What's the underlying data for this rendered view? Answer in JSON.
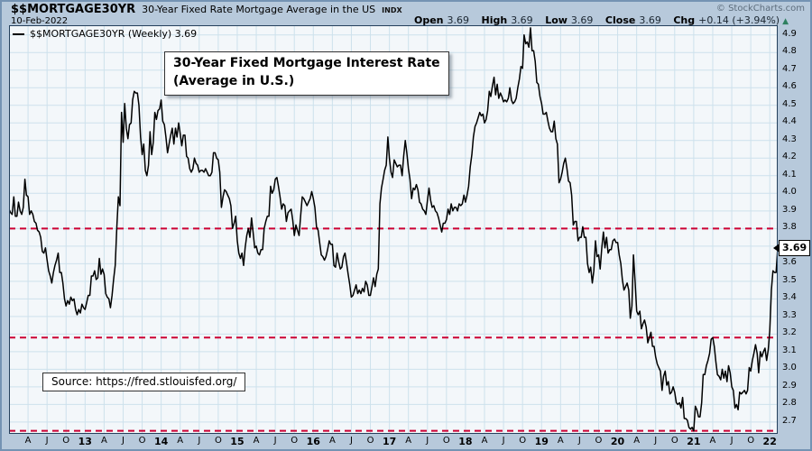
{
  "header": {
    "symbol": "$$MORTGAGE30YR",
    "title": "30-Year Fixed Rate Mortgage Average in the US",
    "exchange": "INDX",
    "date": "10-Feb-2022",
    "copyright": "© StockCharts.com",
    "quote": {
      "open_label": "Open",
      "open": "3.69",
      "high_label": "High",
      "high": "3.69",
      "low_label": "Low",
      "low": "3.69",
      "close_label": "Close",
      "close": "3.69",
      "chg_label": "Chg",
      "chg": "+0.14 (+3.94%)",
      "direction_icon": "▲"
    }
  },
  "legend": {
    "series_label": "$$MORTGAGE30YR (Weekly) 3.69"
  },
  "annotation": {
    "line1": "30-Year Fixed Mortgage Interest Rate",
    "line2": "(Average in U.S.)"
  },
  "source_box": {
    "text": "Source: https://fred.stlouisfed.org/"
  },
  "price_label": {
    "value": "3.69"
  },
  "colors": {
    "page_bg": "#b7c9db",
    "plot_bg": "#f3f7fa",
    "grid": "#cde1ec",
    "series": "#000000",
    "dashed_line": "#cc0033",
    "frame": "#24405c",
    "copyright_text": "#5d6d7c",
    "change_arrow": "#2e8060"
  },
  "chart_data": {
    "type": "line",
    "title": "30-Year Fixed Mortgage Interest Rate (Average in U.S.)",
    "timeframe": "Weekly, Jan 2012 - 10 Feb 2022",
    "points_per_month": 4,
    "ylim": [
      2.633,
      4.955
    ],
    "last_value": 3.69,
    "y_ticks": [
      "4.9",
      "4.8",
      "4.7",
      "4.6",
      "4.5",
      "4.4",
      "4.3",
      "4.2",
      "4.1",
      "4.0",
      "3.9",
      "3.8",
      "3.7",
      "3.6",
      "3.5",
      "3.4",
      "3.3",
      "3.2",
      "3.1",
      "3.0",
      "2.9",
      "2.8",
      "2.7"
    ],
    "x_ticks": [
      {
        "label": "A",
        "month": 3
      },
      {
        "label": "J",
        "month": 6
      },
      {
        "label": "O",
        "month": 9
      },
      {
        "label": "13",
        "month": 12,
        "bold": true
      },
      {
        "label": "A",
        "month": 15
      },
      {
        "label": "J",
        "month": 18
      },
      {
        "label": "O",
        "month": 21
      },
      {
        "label": "14",
        "month": 24,
        "bold": true
      },
      {
        "label": "A",
        "month": 27
      },
      {
        "label": "J",
        "month": 30
      },
      {
        "label": "O",
        "month": 33
      },
      {
        "label": "15",
        "month": 36,
        "bold": true
      },
      {
        "label": "A",
        "month": 39
      },
      {
        "label": "J",
        "month": 42
      },
      {
        "label": "O",
        "month": 45
      },
      {
        "label": "16",
        "month": 48,
        "bold": true
      },
      {
        "label": "A",
        "month": 51
      },
      {
        "label": "J",
        "month": 54
      },
      {
        "label": "O",
        "month": 57
      },
      {
        "label": "17",
        "month": 60,
        "bold": true
      },
      {
        "label": "A",
        "month": 63
      },
      {
        "label": "J",
        "month": 66
      },
      {
        "label": "O",
        "month": 69
      },
      {
        "label": "18",
        "month": 72,
        "bold": true
      },
      {
        "label": "A",
        "month": 75
      },
      {
        "label": "J",
        "month": 78
      },
      {
        "label": "O",
        "month": 81
      },
      {
        "label": "19",
        "month": 84,
        "bold": true
      },
      {
        "label": "A",
        "month": 87
      },
      {
        "label": "J",
        "month": 90
      },
      {
        "label": "O",
        "month": 93
      },
      {
        "label": "20",
        "month": 96,
        "bold": true
      },
      {
        "label": "A",
        "month": 99
      },
      {
        "label": "J",
        "month": 102
      },
      {
        "label": "O",
        "month": 105
      },
      {
        "label": "21",
        "month": 108,
        "bold": true
      },
      {
        "label": "A",
        "month": 111
      },
      {
        "label": "J",
        "month": 114
      },
      {
        "label": "O",
        "month": 117
      },
      {
        "label": "22",
        "month": 120,
        "bold": true
      }
    ],
    "hlines": {
      "values": [
        3.8,
        3.18,
        2.65
      ],
      "color": "#cc0033",
      "style": "dashed"
    },
    "grid": {
      "vline_every_months": 3,
      "hline_step": 0.1
    },
    "series": [
      {
        "name": "$$MORTGAGE30YR (Weekly)",
        "color": "#000000",
        "values": [
          3.91,
          3.89,
          3.88,
          3.98,
          3.87,
          3.87,
          3.95,
          3.9,
          3.88,
          3.92,
          4.08,
          3.99,
          3.98,
          3.88,
          3.9,
          3.88,
          3.84,
          3.83,
          3.79,
          3.78,
          3.75,
          3.67,
          3.66,
          3.69,
          3.62,
          3.56,
          3.53,
          3.49,
          3.55,
          3.59,
          3.62,
          3.66,
          3.55,
          3.55,
          3.49,
          3.4,
          3.36,
          3.39,
          3.37,
          3.41,
          3.39,
          3.4,
          3.34,
          3.31,
          3.34,
          3.32,
          3.37,
          3.35,
          3.34,
          3.38,
          3.42,
          3.42,
          3.53,
          3.53,
          3.56,
          3.51,
          3.52,
          3.63,
          3.54,
          3.57,
          3.54,
          3.43,
          3.41,
          3.4,
          3.35,
          3.42,
          3.51,
          3.59,
          3.81,
          3.98,
          3.93,
          4.46,
          4.29,
          4.51,
          4.37,
          4.31,
          4.39,
          4.4,
          4.53,
          4.58,
          4.57,
          4.57,
          4.5,
          4.32,
          4.22,
          4.28,
          4.13,
          4.1,
          4.16,
          4.35,
          4.22,
          4.29,
          4.46,
          4.42,
          4.47,
          4.48,
          4.53,
          4.41,
          4.39,
          4.32,
          4.23,
          4.28,
          4.33,
          4.37,
          4.28,
          4.37,
          4.32,
          4.4,
          4.34,
          4.27,
          4.33,
          4.33,
          4.21,
          4.2,
          4.14,
          4.12,
          4.14,
          4.2,
          4.17,
          4.16,
          4.12,
          4.13,
          4.13,
          4.12,
          4.14,
          4.12,
          4.1,
          4.1,
          4.12,
          4.23,
          4.23,
          4.2,
          4.19,
          4.12,
          3.92,
          3.98,
          4.02,
          4.01,
          3.99,
          3.97,
          3.93,
          3.8,
          3.83,
          3.87,
          3.73,
          3.66,
          3.63,
          3.66,
          3.59,
          3.69,
          3.76,
          3.8,
          3.75,
          3.86,
          3.78,
          3.69,
          3.7,
          3.66,
          3.65,
          3.68,
          3.68,
          3.8,
          3.84,
          3.87,
          3.87,
          4.04,
          4.0,
          4.02,
          4.08,
          4.09,
          4.04,
          3.98,
          3.91,
          3.94,
          3.93,
          3.84,
          3.89,
          3.9,
          3.91,
          3.85,
          3.76,
          3.82,
          3.79,
          3.76,
          3.87,
          3.98,
          3.97,
          3.95,
          3.93,
          3.95,
          3.97,
          4.01,
          3.97,
          3.92,
          3.81,
          3.79,
          3.72,
          3.65,
          3.64,
          3.62,
          3.64,
          3.68,
          3.73,
          3.71,
          3.71,
          3.59,
          3.58,
          3.66,
          3.61,
          3.57,
          3.58,
          3.64,
          3.66,
          3.6,
          3.54,
          3.48,
          3.41,
          3.42,
          3.45,
          3.48,
          3.43,
          3.45,
          3.43,
          3.46,
          3.44,
          3.5,
          3.48,
          3.42,
          3.42,
          3.47,
          3.52,
          3.47,
          3.54,
          3.57,
          3.94,
          4.03,
          4.08,
          4.13,
          4.16,
          4.32,
          4.2,
          4.12,
          4.09,
          4.19,
          4.17,
          4.15,
          4.16,
          4.16,
          4.1,
          4.21,
          4.3,
          4.23,
          4.14,
          4.08,
          3.97,
          4.03,
          4.02,
          4.05,
          4.02,
          3.95,
          3.94,
          3.91,
          3.9,
          3.88,
          3.96,
          4.03,
          3.96,
          3.92,
          3.93,
          3.9,
          3.89,
          3.86,
          3.82,
          3.78,
          3.83,
          3.83,
          3.85,
          3.91,
          3.88,
          3.94,
          3.9,
          3.92,
          3.92,
          3.9,
          3.94,
          3.93,
          3.94,
          3.99,
          3.95,
          3.99,
          4.04,
          4.15,
          4.22,
          4.32,
          4.38,
          4.4,
          4.43,
          4.46,
          4.44,
          4.45,
          4.4,
          4.42,
          4.47,
          4.58,
          4.55,
          4.61,
          4.66,
          4.56,
          4.62,
          4.54,
          4.57,
          4.55,
          4.52,
          4.53,
          4.52,
          4.54,
          4.6,
          4.53,
          4.51,
          4.52,
          4.54,
          4.6,
          4.65,
          4.72,
          4.71,
          4.9,
          4.85,
          4.86,
          4.83,
          4.94,
          4.81,
          4.81,
          4.75,
          4.63,
          4.62,
          4.55,
          4.51,
          4.45,
          4.45,
          4.46,
          4.41,
          4.37,
          4.35,
          4.35,
          4.41,
          4.31,
          4.28,
          4.06,
          4.08,
          4.12,
          4.17,
          4.2,
          4.14,
          4.07,
          4.06,
          3.99,
          3.82,
          3.84,
          3.84,
          3.73,
          3.75,
          3.75,
          3.81,
          3.75,
          3.75,
          3.6,
          3.55,
          3.58,
          3.49,
          3.56,
          3.73,
          3.64,
          3.65,
          3.57,
          3.69,
          3.78,
          3.69,
          3.75,
          3.66,
          3.68,
          3.68,
          3.73,
          3.74,
          3.72,
          3.72,
          3.65,
          3.6,
          3.51,
          3.45,
          3.47,
          3.49,
          3.45,
          3.29,
          3.36,
          3.65,
          3.5,
          3.33,
          3.31,
          3.33,
          3.23,
          3.26,
          3.28,
          3.24,
          3.15,
          3.18,
          3.21,
          3.13,
          3.13,
          3.07,
          3.03,
          3.01,
          2.99,
          2.88,
          2.96,
          2.99,
          2.91,
          2.93,
          2.86,
          2.87,
          2.9,
          2.87,
          2.81,
          2.8,
          2.81,
          2.78,
          2.84,
          2.72,
          2.72,
          2.71,
          2.67,
          2.66,
          2.67,
          2.65,
          2.79,
          2.77,
          2.73,
          2.73,
          2.81,
          2.97,
          2.97,
          3.02,
          3.05,
          3.09,
          3.17,
          3.18,
          3.13,
          3.04,
          2.97,
          2.96,
          2.94,
          3.0,
          2.95,
          2.99,
          2.93,
          3.02,
          2.98,
          2.9,
          2.88,
          2.78,
          2.8,
          2.77,
          2.87,
          2.86,
          2.87,
          2.88,
          2.86,
          2.88,
          3.01,
          2.99,
          3.05,
          3.09,
          3.14,
          3.09,
          2.98,
          3.1,
          3.07,
          3.1,
          3.12,
          3.05,
          3.11,
          3.22,
          3.45,
          3.56,
          3.55,
          3.55,
          3.69
        ]
      }
    ]
  }
}
